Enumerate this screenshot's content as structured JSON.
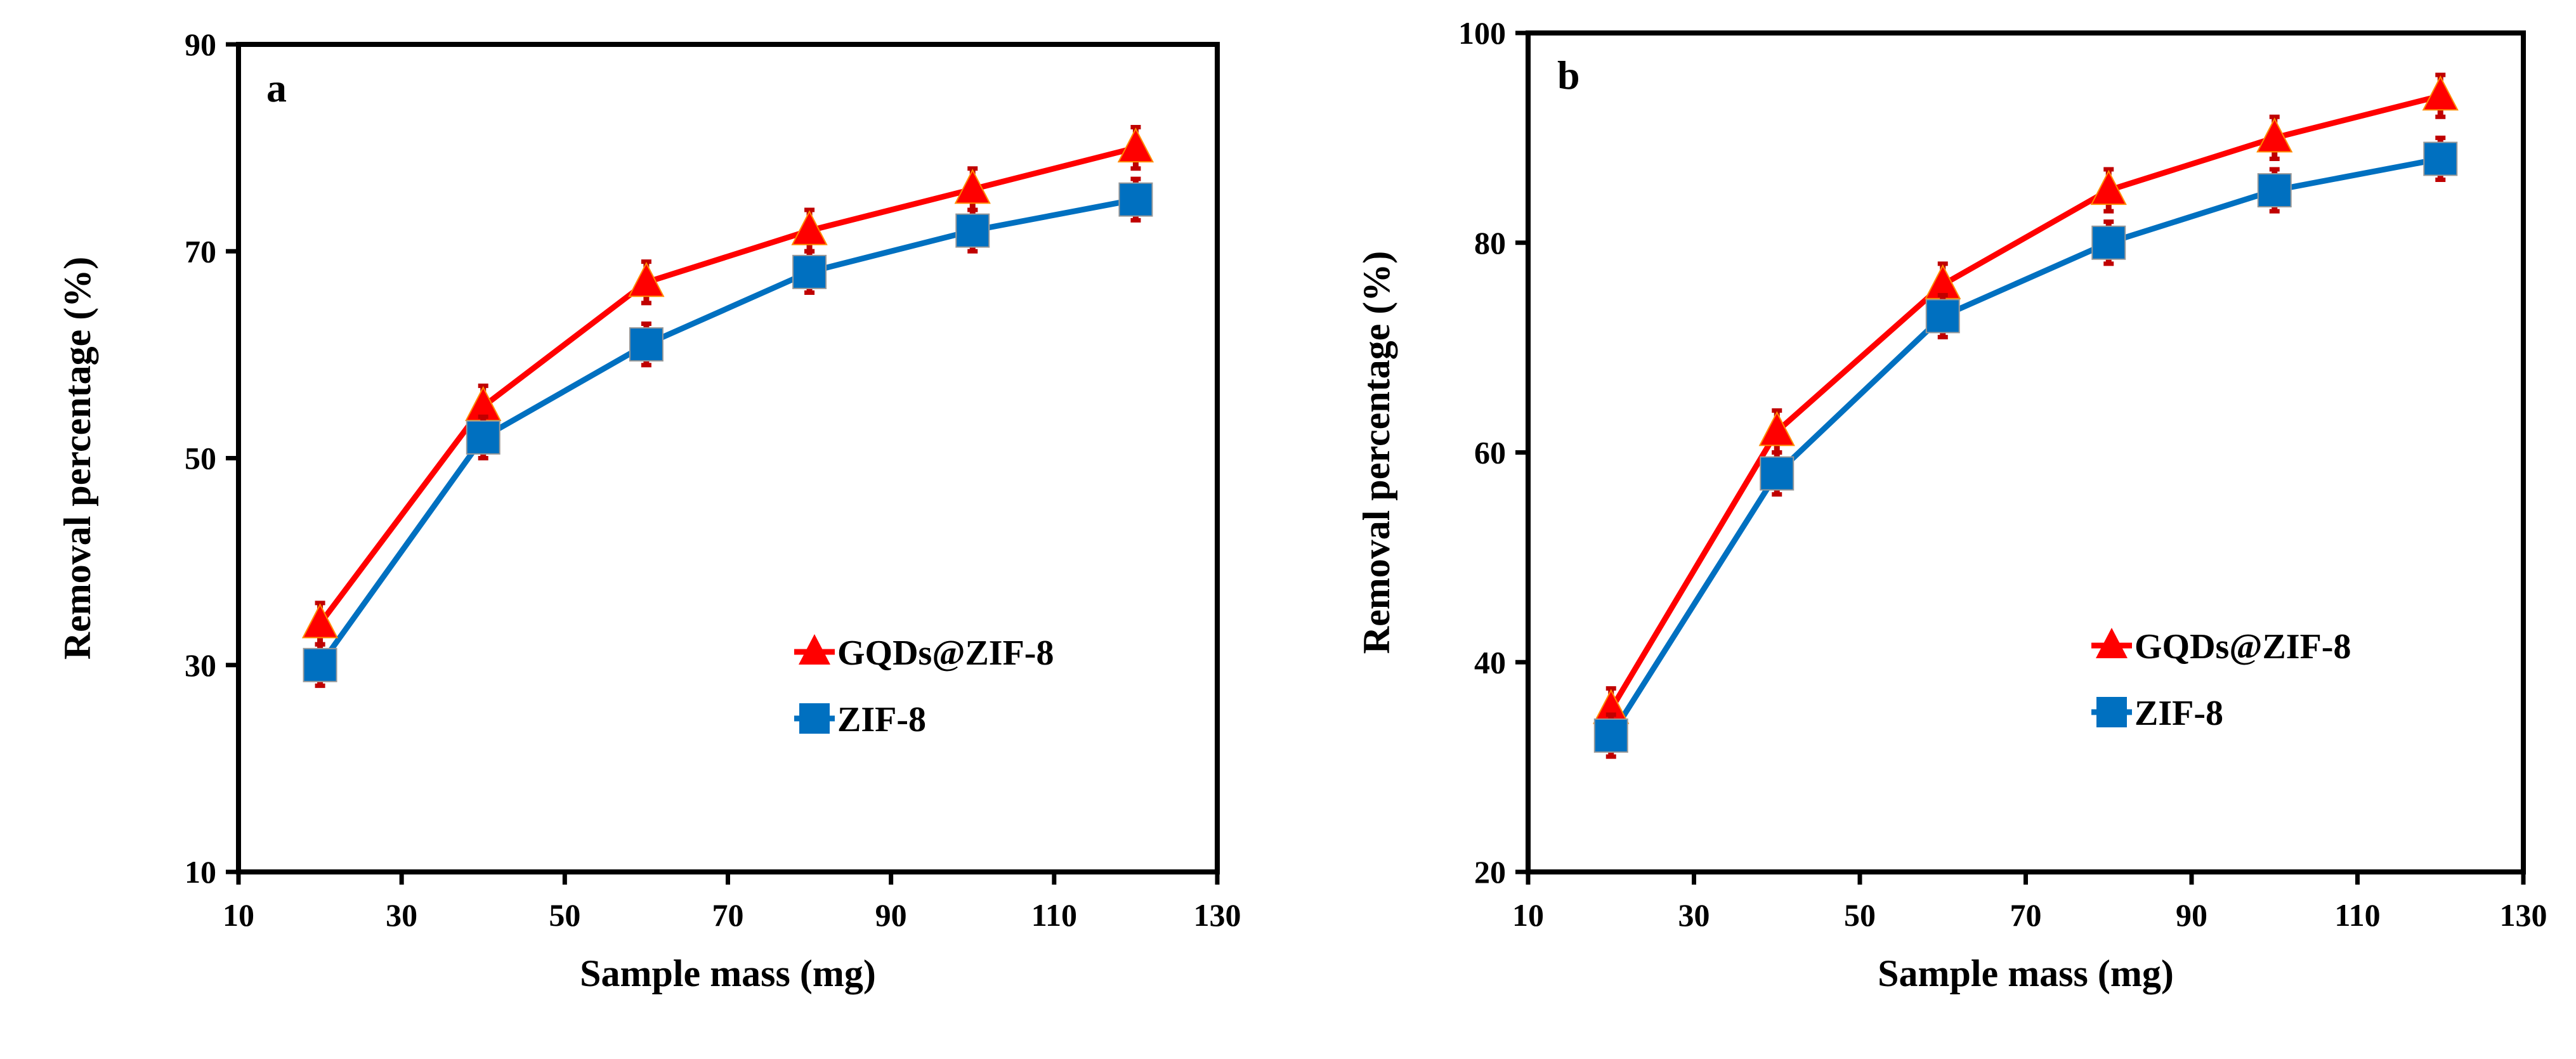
{
  "colors": {
    "gqds": "#ff0000",
    "zif": "#0070c0",
    "error_bar": "#c00000",
    "axis": "#000000"
  },
  "chart_data": [
    {
      "type": "line",
      "panel_label": "a",
      "xlabel": "Sample mass (mg)",
      "ylabel": "Removal percentage (%)",
      "xlim": [
        10,
        130
      ],
      "ylim": [
        10,
        90
      ],
      "xticks": [
        10,
        30,
        50,
        70,
        90,
        110,
        130
      ],
      "yticks": [
        10,
        30,
        50,
        70,
        90
      ],
      "grid": false,
      "legend_position": "lower-right",
      "x": [
        20,
        40,
        60,
        80,
        100,
        120
      ],
      "series": [
        {
          "name": "GQDs@ZIF-8",
          "marker": "triangle",
          "values": [
            34,
            55,
            67,
            72,
            76,
            80
          ],
          "error": 2
        },
        {
          "name": "ZIF-8",
          "marker": "square",
          "values": [
            30,
            52,
            61,
            68,
            72,
            75
          ],
          "error": 2
        }
      ]
    },
    {
      "type": "line",
      "panel_label": "b",
      "xlabel": "Sample mass (mg)",
      "ylabel": "Removal percentage (%)",
      "xlim": [
        10,
        130
      ],
      "ylim": [
        20,
        100
      ],
      "xticks": [
        10,
        30,
        50,
        70,
        90,
        110,
        130
      ],
      "yticks": [
        20,
        40,
        60,
        80,
        100
      ],
      "grid": false,
      "legend_position": "lower-right",
      "x": [
        20,
        40,
        60,
        80,
        100,
        120
      ],
      "series": [
        {
          "name": "GQDs@ZIF-8",
          "marker": "triangle",
          "values": [
            35.5,
            62,
            76,
            85,
            90,
            94
          ],
          "error": 2
        },
        {
          "name": "ZIF-8",
          "marker": "square",
          "values": [
            33,
            58,
            73,
            80,
            85,
            88
          ],
          "error": 2
        }
      ]
    }
  ]
}
